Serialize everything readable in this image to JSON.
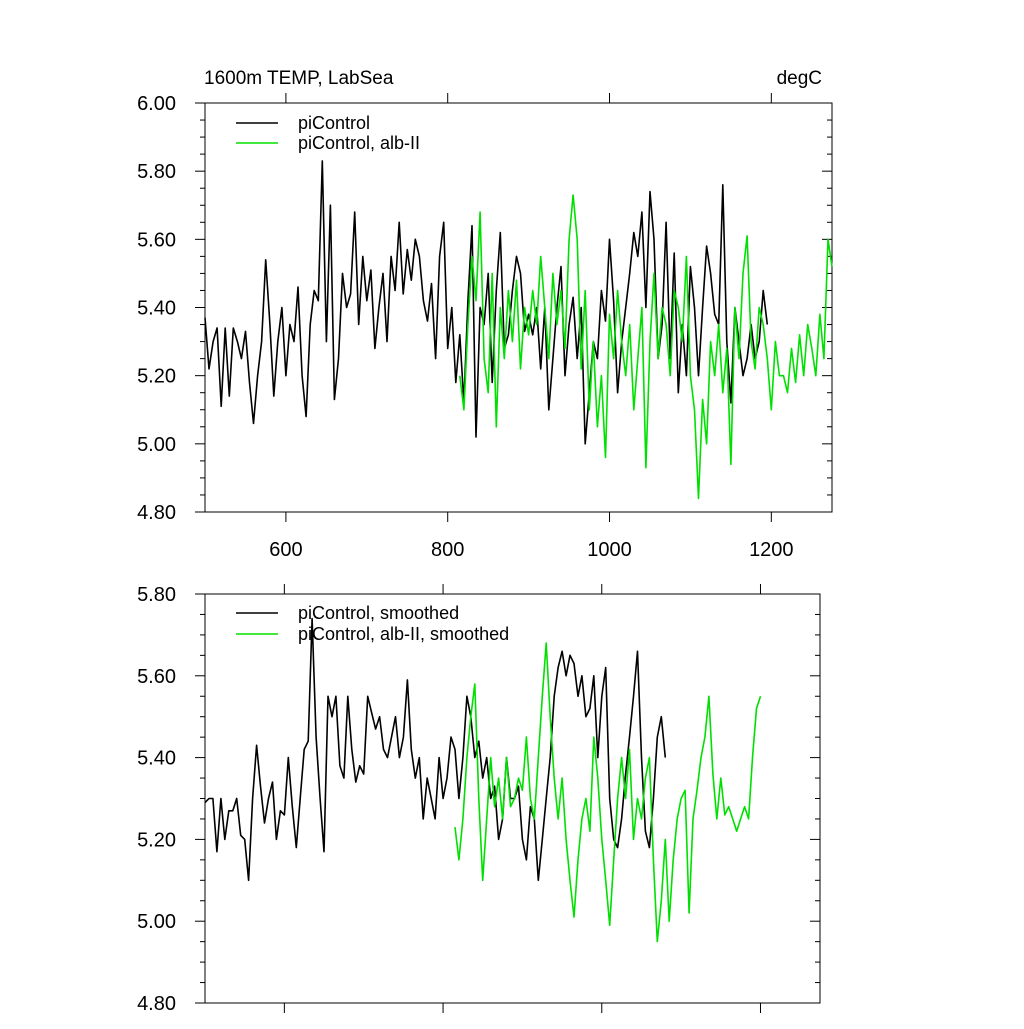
{
  "figure": {
    "title_left": "1600m TEMP, LabSea",
    "title_right": "degC"
  },
  "colors": {
    "series_black": "#000000",
    "series_green": "#00e000"
  },
  "chart_data": [
    {
      "type": "line",
      "panel": "top",
      "title": "1600m TEMP, LabSea",
      "units": "degC",
      "xlim": [
        500,
        1275
      ],
      "ylim": [
        4.8,
        6.0
      ],
      "xticks": [
        600,
        800,
        1000,
        1200
      ],
      "xtick_labels": [
        "600",
        "800",
        "1000",
        "1200"
      ],
      "yticks": [
        4.8,
        5.0,
        5.2,
        5.4,
        5.6,
        5.8,
        6.0
      ],
      "ytick_labels": [
        "4.80",
        "5.00",
        "5.20",
        "5.40",
        "5.60",
        "5.80",
        "6.00"
      ],
      "legend_position": "top-left",
      "series": [
        {
          "name": "piControl",
          "color": "#000000",
          "x_start": 500,
          "x_step": 5,
          "values": [
            5.37,
            5.22,
            5.3,
            5.34,
            5.11,
            5.34,
            5.14,
            5.34,
            5.3,
            5.25,
            5.33,
            5.18,
            5.06,
            5.2,
            5.3,
            5.54,
            5.36,
            5.14,
            5.3,
            5.4,
            5.2,
            5.35,
            5.3,
            5.46,
            5.2,
            5.08,
            5.35,
            5.45,
            5.42,
            5.83,
            5.3,
            5.7,
            5.13,
            5.25,
            5.5,
            5.4,
            5.44,
            5.68,
            5.35,
            5.55,
            5.42,
            5.51,
            5.28,
            5.4,
            5.5,
            5.3,
            5.55,
            5.45,
            5.65,
            5.44,
            5.57,
            5.48,
            5.6,
            5.55,
            5.42,
            5.36,
            5.47,
            5.25,
            5.55,
            5.65,
            5.28,
            5.4,
            5.18,
            5.32,
            5.12,
            5.42,
            5.64,
            5.02,
            5.4,
            5.35,
            5.5,
            5.18,
            5.45,
            5.62,
            5.28,
            5.32,
            5.45,
            5.55,
            5.5,
            5.33,
            5.38,
            5.32,
            5.4,
            5.22,
            5.4,
            5.1,
            5.25,
            5.4,
            5.52,
            5.2,
            5.35,
            5.43,
            5.25,
            5.4,
            5.0,
            5.15,
            5.3,
            5.25,
            5.45,
            5.36,
            5.6,
            5.42,
            5.15,
            5.3,
            5.4,
            5.5,
            5.62,
            5.55,
            5.68,
            5.4,
            5.74,
            5.6,
            5.25,
            5.35,
            5.65,
            5.25,
            5.56,
            5.15,
            5.35,
            5.2,
            5.52,
            5.4,
            5.2,
            5.4,
            5.58,
            5.5,
            5.38,
            5.35,
            5.76,
            5.3,
            5.12,
            5.4,
            5.3,
            5.2,
            5.25,
            5.35,
            5.25,
            5.3,
            5.45,
            5.35
          ]
        },
        {
          "name": "piControl, alb-II",
          "color": "#00e000",
          "x_start": 815,
          "x_step": 5,
          "values": [
            5.2,
            5.1,
            5.35,
            5.55,
            5.42,
            5.68,
            5.25,
            5.15,
            5.5,
            5.05,
            5.4,
            5.25,
            5.45,
            5.3,
            5.48,
            5.22,
            5.4,
            5.32,
            5.45,
            5.35,
            5.55,
            5.4,
            5.25,
            5.5,
            5.35,
            5.45,
            5.28,
            5.6,
            5.73,
            5.6,
            5.22,
            5.45,
            5.1,
            5.3,
            5.05,
            5.2,
            4.96,
            5.38,
            5.25,
            5.45,
            5.3,
            5.2,
            5.35,
            5.1,
            5.25,
            5.4,
            4.93,
            5.3,
            5.5,
            5.25,
            5.4,
            5.35,
            5.2,
            5.45,
            5.4,
            5.3,
            5.55,
            5.2,
            5.1,
            4.84,
            5.13,
            5.0,
            5.3,
            5.2,
            5.35,
            5.15,
            5.28,
            4.94,
            5.4,
            5.25,
            5.5,
            5.61,
            5.3,
            5.22,
            5.4,
            5.35,
            5.25,
            5.1,
            5.3,
            5.2,
            5.2,
            5.15,
            5.28,
            5.18,
            5.32,
            5.2,
            5.35,
            5.28,
            5.2,
            5.38,
            5.25,
            5.6,
            5.52
          ]
        }
      ]
    },
    {
      "type": "line",
      "panel": "bottom",
      "xlim": [
        500,
        1275
      ],
      "ylim": [
        4.8,
        5.8
      ],
      "xticks": [
        600,
        800,
        1000,
        1200
      ],
      "yticks": [
        4.8,
        5.0,
        5.2,
        5.4,
        5.6,
        5.8
      ],
      "ytick_labels": [
        "4.80",
        "5.00",
        "5.20",
        "5.40",
        "5.60",
        "5.80"
      ],
      "legend_position": "top-left",
      "series": [
        {
          "name": "piControl, smoothed",
          "color": "#000000",
          "x_start": 500,
          "x_step": 5,
          "values": [
            5.29,
            5.3,
            5.3,
            5.17,
            5.3,
            5.2,
            5.27,
            5.27,
            5.3,
            5.21,
            5.2,
            5.1,
            5.3,
            5.43,
            5.33,
            5.24,
            5.3,
            5.34,
            5.2,
            5.27,
            5.26,
            5.4,
            5.28,
            5.18,
            5.3,
            5.42,
            5.44,
            5.74,
            5.45,
            5.3,
            5.17,
            5.55,
            5.5,
            5.55,
            5.38,
            5.35,
            5.55,
            5.42,
            5.34,
            5.38,
            5.36,
            5.55,
            5.51,
            5.47,
            5.5,
            5.42,
            5.4,
            5.45,
            5.5,
            5.4,
            5.45,
            5.59,
            5.42,
            5.35,
            5.4,
            5.25,
            5.35,
            5.3,
            5.25,
            5.4,
            5.3,
            5.35,
            5.45,
            5.42,
            5.3,
            5.4,
            5.55,
            5.5,
            5.4,
            5.44,
            5.35,
            5.4,
            5.3,
            5.33,
            5.2,
            5.25,
            5.4,
            5.3,
            5.3,
            5.33,
            5.2,
            5.15,
            5.28,
            5.25,
            5.1,
            5.2,
            5.3,
            5.4,
            5.55,
            5.62,
            5.66,
            5.6,
            5.65,
            5.63,
            5.55,
            5.6,
            5.5,
            5.52,
            5.6,
            5.4,
            5.55,
            5.62,
            5.3,
            5.2,
            5.18,
            5.25,
            5.36,
            5.45,
            5.55,
            5.66,
            5.4,
            5.22,
            5.18,
            5.3,
            5.45,
            5.5,
            5.4
          ]
        },
        {
          "name": "piControl, alb-II, smoothed",
          "color": "#00e000",
          "x_start": 815,
          "x_step": 5,
          "values": [
            5.23,
            5.15,
            5.25,
            5.4,
            5.5,
            5.58,
            5.3,
            5.1,
            5.25,
            5.4,
            5.28,
            5.35,
            5.25,
            5.4,
            5.28,
            5.3,
            5.35,
            5.32,
            5.45,
            5.3,
            5.25,
            5.4,
            5.55,
            5.68,
            5.5,
            5.35,
            5.25,
            5.35,
            5.2,
            5.1,
            5.01,
            5.15,
            5.25,
            5.3,
            5.22,
            5.45,
            5.35,
            5.2,
            5.1,
            4.99,
            5.15,
            5.3,
            5.4,
            5.3,
            5.42,
            5.2,
            5.3,
            5.25,
            5.35,
            5.4,
            5.15,
            4.95,
            5.05,
            5.2,
            5.0,
            5.15,
            5.25,
            5.3,
            5.32,
            5.02,
            5.25,
            5.32,
            5.4,
            5.45,
            5.55,
            5.36,
            5.25,
            5.35,
            5.26,
            5.28,
            5.25,
            5.22,
            5.25,
            5.28,
            5.25,
            5.4,
            5.52,
            5.55
          ]
        }
      ]
    }
  ]
}
